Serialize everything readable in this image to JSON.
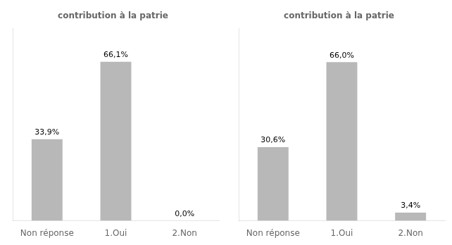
{
  "chart_data": [
    {
      "type": "bar",
      "title": "contribution à la patrie",
      "categories": [
        "Non réponse",
        "1.Oui",
        "2.Non"
      ],
      "values": [
        33.9,
        66.1,
        0.0
      ],
      "value_labels": [
        "33,9%",
        "66,1%",
        "0,0%"
      ],
      "color": "#b8b8b8",
      "ylim": [
        0,
        80
      ],
      "grid": false,
      "data_labels": true,
      "tick_labels": "x"
    },
    {
      "type": "bar",
      "title": "contribution à la patrie",
      "categories": [
        "Non réponse",
        "1.Oui",
        "2.Non"
      ],
      "values": [
        30.6,
        66.0,
        3.4
      ],
      "value_labels": [
        "30,6%",
        "66,0%",
        "3,4%"
      ],
      "color": "#b8b8b8",
      "ylim": [
        0,
        80
      ],
      "grid": false,
      "data_labels": true,
      "tick_labels": "x"
    }
  ]
}
